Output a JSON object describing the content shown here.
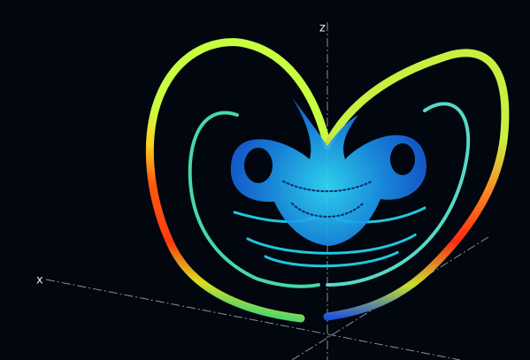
{
  "axes": {
    "x_label": "x",
    "z_label": "z"
  }
}
